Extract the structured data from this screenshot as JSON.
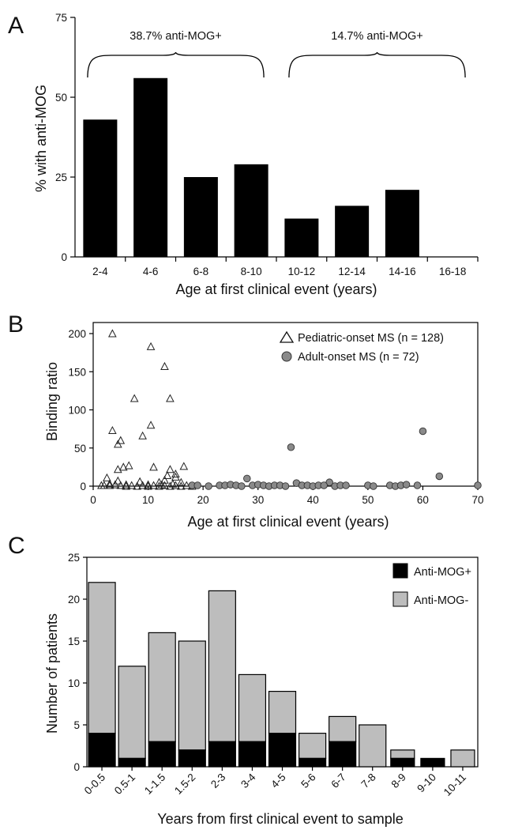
{
  "panels": [
    {
      "letter": "A"
    },
    {
      "letter": "B"
    },
    {
      "letter": "C"
    }
  ],
  "chart_data": [
    {
      "type": "bar",
      "panel": "A",
      "categories": [
        "2-4",
        "4-6",
        "6-8",
        "8-10",
        "10-12",
        "12-14",
        "14-16",
        "16-18"
      ],
      "values": [
        43,
        56,
        25,
        29,
        12,
        16,
        21,
        0
      ],
      "ylabel": "% with anti-MOG",
      "xlabel": "Age at first clinical event (years)",
      "ylim": [
        0,
        75
      ],
      "yticks": [
        0,
        25,
        50,
        75
      ],
      "annotations": [
        {
          "label": "38.7% anti-MOG+",
          "from_category": 0,
          "to_category": 3
        },
        {
          "label": "14.7% anti-MOG+",
          "from_category": 4,
          "to_category": 7
        }
      ]
    },
    {
      "type": "scatter",
      "panel": "B",
      "xlabel": "Age at first clinical event (years)",
      "ylabel": "Binding ratio",
      "xlim": [
        0,
        70
      ],
      "ylim": [
        0,
        200
      ],
      "xticks": [
        0,
        10,
        20,
        30,
        40,
        50,
        60,
        70
      ],
      "yticks": [
        0,
        50,
        100,
        150,
        200
      ],
      "legend_position": "top-right",
      "series": [
        {
          "name": "Pediatric-onset MS (n = 128)",
          "marker": "open-triangle",
          "points": [
            [
              3.5,
              200
            ],
            [
              10.5,
              183
            ],
            [
              13,
              157
            ],
            [
              7.5,
              115
            ],
            [
              14,
              115
            ],
            [
              10.5,
              80
            ],
            [
              3.5,
              73
            ],
            [
              9,
              66
            ],
            [
              5,
              60
            ],
            [
              4.5,
              55
            ],
            [
              6.5,
              27
            ],
            [
              5.5,
              25
            ],
            [
              4.5,
              22
            ],
            [
              11,
              25
            ],
            [
              14,
              22
            ],
            [
              16.5,
              26
            ],
            [
              15,
              16
            ],
            [
              13.5,
              14
            ],
            [
              15,
              12
            ],
            [
              2.5,
              11
            ],
            [
              13,
              8
            ],
            [
              4.5,
              7
            ],
            [
              8.5,
              6
            ],
            [
              12,
              5
            ],
            [
              16,
              5
            ],
            [
              3,
              3
            ],
            [
              6,
              2
            ],
            [
              10,
              2
            ],
            [
              1.5,
              1
            ],
            [
              2,
              1
            ],
            [
              3,
              1
            ],
            [
              4,
              2
            ],
            [
              5,
              1
            ],
            [
              6,
              0
            ],
            [
              7,
              1
            ],
            [
              8,
              0
            ],
            [
              9,
              1
            ],
            [
              10,
              0
            ],
            [
              11,
              1
            ],
            [
              12,
              0
            ],
            [
              13,
              1
            ],
            [
              14,
              0
            ],
            [
              15,
              1
            ],
            [
              16,
              0
            ],
            [
              17,
              1
            ],
            [
              18,
              0
            ],
            [
              12.5,
              2
            ],
            [
              14.5,
              3
            ]
          ]
        },
        {
          "name": "Adult-onset MS (n = 72)",
          "marker": "filled-circle",
          "points": [
            [
              60,
              72
            ],
            [
              36,
              51
            ],
            [
              63,
              13
            ],
            [
              28,
              10
            ],
            [
              43,
              5
            ],
            [
              37,
              4
            ],
            [
              18,
              1
            ],
            [
              19,
              1
            ],
            [
              21,
              0
            ],
            [
              23,
              1
            ],
            [
              24,
              1
            ],
            [
              25,
              2
            ],
            [
              26,
              1
            ],
            [
              27,
              0
            ],
            [
              29,
              1
            ],
            [
              30,
              2
            ],
            [
              31,
              1
            ],
            [
              32,
              0
            ],
            [
              33,
              1
            ],
            [
              34,
              1
            ],
            [
              35,
              0
            ],
            [
              38,
              1
            ],
            [
              39,
              1
            ],
            [
              40,
              0
            ],
            [
              41,
              1
            ],
            [
              42,
              1
            ],
            [
              44,
              0
            ],
            [
              45,
              1
            ],
            [
              46,
              1
            ],
            [
              50,
              1
            ],
            [
              51,
              0
            ],
            [
              54,
              1
            ],
            [
              55,
              0
            ],
            [
              56,
              1
            ],
            [
              57,
              2
            ],
            [
              59,
              1
            ],
            [
              70,
              1
            ]
          ]
        }
      ]
    },
    {
      "type": "stacked-bar",
      "panel": "C",
      "categories": [
        "0-0.5",
        "0.5-1",
        "1-1.5",
        "1.5-2",
        "2-3",
        "3-4",
        "4-5",
        "5-6",
        "6-7",
        "7-8",
        "8-9",
        "9-10",
        "10-11"
      ],
      "xlabel": "Years from first clinical event to sample",
      "ylabel": "Number of patients",
      "ylim": [
        0,
        25
      ],
      "yticks": [
        0,
        5,
        10,
        15,
        20,
        25
      ],
      "legend_position": "top-right",
      "series": [
        {
          "name": "Anti-MOG+",
          "color": "#000000",
          "values": [
            4,
            1,
            3,
            2,
            3,
            3,
            4,
            1,
            3,
            0,
            1,
            1,
            0
          ]
        },
        {
          "name": "Anti-MOG-",
          "color": "#bdbdbd",
          "values": [
            18,
            11,
            13,
            13,
            18,
            8,
            5,
            3,
            3,
            5,
            1,
            0,
            2
          ]
        }
      ]
    }
  ]
}
